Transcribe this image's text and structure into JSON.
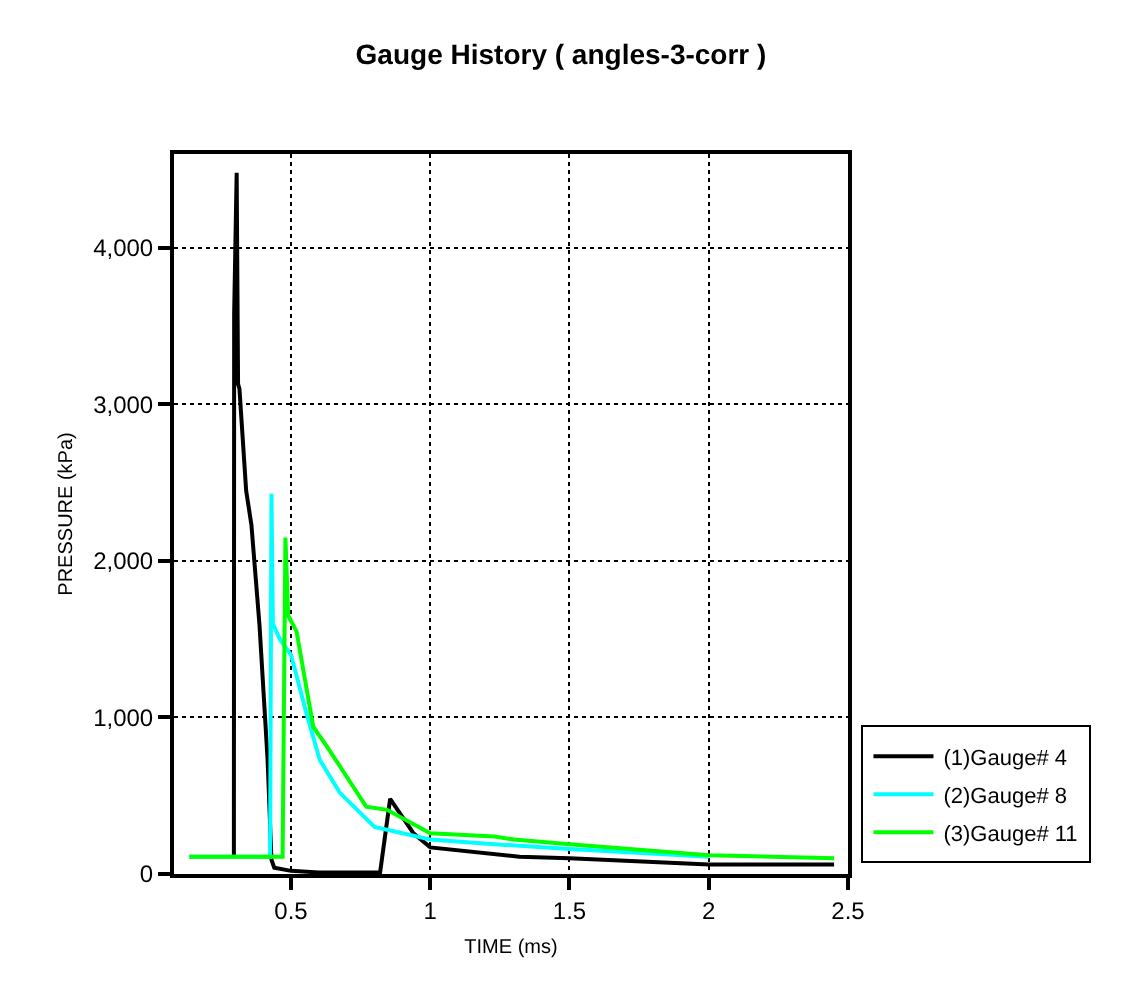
{
  "chart_data": {
    "type": "line",
    "title": "Gauge History ( angles-3-corr )",
    "xlabel": "TIME (ms)",
    "ylabel": "PRESSURE (kPa)",
    "xlim": [
      0.08,
      2.5
    ],
    "xticks": [
      0.5,
      1.0,
      1.5,
      2.0,
      2.5
    ],
    "ylim": [
      0,
      4600
    ],
    "yticks": [
      {
        "value": 0,
        "label": "0"
      },
      {
        "value": 1000,
        "label": "1,000"
      },
      {
        "value": 2000,
        "label": "2,000"
      },
      {
        "value": 3000,
        "label": "3,000"
      },
      {
        "value": 4000,
        "label": "4,000"
      }
    ],
    "grid": true,
    "legend": "bottom right",
    "marker": "none",
    "line_style": "solid",
    "series": [
      {
        "name": "(1)Gauge# 4",
        "color": "#000000",
        "x": [
          0.295,
          0.296,
          0.305,
          0.31,
          0.315,
          0.339,
          0.358,
          0.387,
          0.416,
          0.43,
          0.44,
          0.5,
          0.6,
          0.82,
          0.856,
          0.94,
          1.0,
          1.32,
          1.5,
          2.0,
          2.45
        ],
        "values": [
          110,
          3580,
          4480,
          3130,
          3100,
          2450,
          2230,
          1590,
          730,
          90,
          40,
          20,
          10,
          10,
          480,
          260,
          170,
          110,
          100,
          60,
          60
        ]
      },
      {
        "name": "(2)Gauge# 8",
        "color": "#00ffff",
        "x": [
          0.135,
          0.425,
          0.43,
          0.435,
          0.46,
          0.5,
          0.555,
          0.603,
          0.675,
          0.8,
          1.0,
          1.23,
          1.5,
          2.0
        ],
        "values": [
          110,
          110,
          2430,
          1600,
          1500,
          1400,
          1030,
          730,
          520,
          300,
          220,
          190,
          160,
          110
        ]
      },
      {
        "name": "(3)Gauge# 11",
        "color": "#00ff00",
        "x": [
          0.135,
          0.47,
          0.48,
          0.49,
          0.52,
          0.58,
          0.627,
          0.675,
          0.77,
          0.845,
          1.0,
          1.23,
          1.3,
          1.5,
          2.0,
          2.45
        ],
        "values": [
          110,
          110,
          2150,
          1650,
          1550,
          940,
          820,
          690,
          430,
          410,
          260,
          240,
          220,
          190,
          120,
          100
        ]
      }
    ]
  }
}
